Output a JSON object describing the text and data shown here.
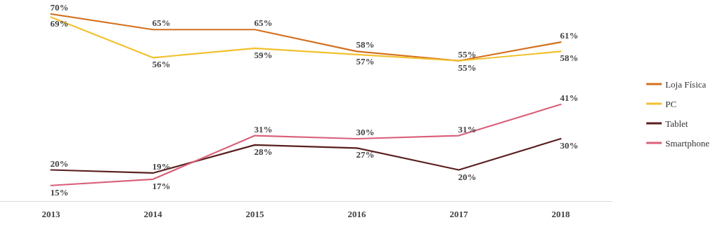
{
  "chart_data": {
    "type": "line",
    "categories": [
      "2013",
      "2014",
      "2015",
      "2016",
      "2017",
      "2018"
    ],
    "legend": "right",
    "marker": "none",
    "line_style": "solid",
    "series": [
      {
        "name": "Loja Física",
        "color": "#d4701f",
        "values": [
          70,
          65,
          65,
          58,
          55,
          61
        ],
        "value_labels": [
          "70%",
          "65%",
          "65%",
          "58%",
          "55%",
          "61%"
        ]
      },
      {
        "name": "PC",
        "color": "#f2c12e",
        "values": [
          69,
          56,
          59,
          57,
          55,
          58
        ],
        "value_labels": [
          "69%",
          "56%",
          "59%",
          "57%",
          "55%",
          "58%"
        ]
      },
      {
        "name": "Tablet",
        "color": "#5a1e1e",
        "values": [
          20,
          19,
          28,
          27,
          20,
          30
        ],
        "value_labels": [
          "20%",
          "19%",
          "28%",
          "27%",
          "20%",
          "30%"
        ]
      },
      {
        "name": "Smartphone",
        "color": "#d9607a",
        "values": [
          15,
          17,
          31,
          30,
          31,
          41
        ],
        "value_labels": [
          "15%",
          "17%",
          "31%",
          "30%",
          "31%",
          "41%"
        ]
      }
    ]
  }
}
